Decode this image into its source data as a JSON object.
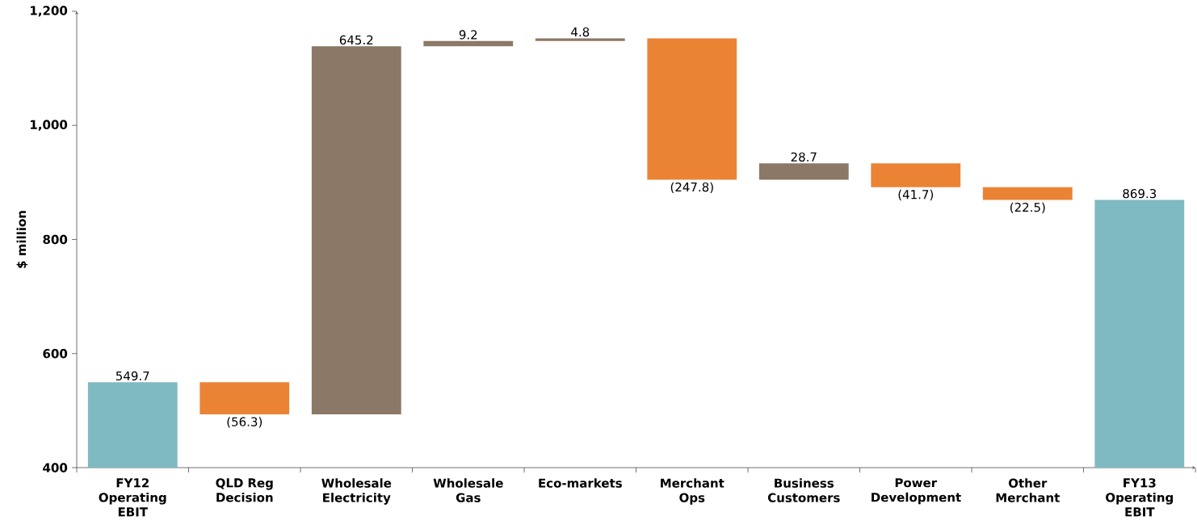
{
  "chart_data": {
    "type": "bar",
    "ylabel": "$ million",
    "categories": [
      "FY12 Operating EBIT",
      "QLD Reg Decision",
      "Wholesale Electricity",
      "Wholesale Gas",
      "Eco-markets",
      "Merchant Ops",
      "Business Customers",
      "Power Development",
      "Other Merchant",
      "FY13 Operating EBIT"
    ],
    "values": [
      549.7,
      -56.3,
      645.2,
      9.2,
      4.8,
      -247.8,
      28.7,
      -41.7,
      -22.5,
      869.3
    ],
    "base": [
      null,
      549.7,
      493.4,
      1138.6,
      1147.8,
      1152.6,
      904.8,
      933.5,
      891.8,
      null
    ],
    "colors": [
      "#7fb9c1",
      "#eb8334",
      "#8b7866",
      "#8b7866",
      "#8b7866",
      "#eb8334",
      "#8b7866",
      "#eb8334",
      "#eb8334",
      "#7fb9c1"
    ],
    "value_labels": [
      "549.7",
      "(56.3)",
      "645.2",
      "9.2",
      "4.8",
      "(247.8)",
      "28.7",
      "(41.7)",
      "(22.5)",
      "869.3"
    ],
    "ylim": [
      400,
      1200
    ],
    "yticks": [
      400,
      600,
      800,
      {
        "value": 1000,
        "label": "1,000"
      },
      {
        "value": 1200,
        "label": "1,200"
      }
    ],
    "stacked": false
  }
}
